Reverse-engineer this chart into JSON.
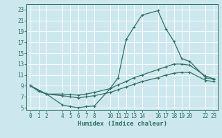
{
  "xlabel": "Humidex (Indice chaleur)",
  "bg_color": "#cce8ee",
  "grid_color": "#ffffff",
  "line_color": "#2e6e62",
  "xlim": [
    -0.5,
    23.5
  ],
  "ylim": [
    4.5,
    24
  ],
  "xticks": [
    0,
    1,
    2,
    4,
    5,
    6,
    7,
    8,
    10,
    11,
    12,
    13,
    14,
    16,
    17,
    18,
    19,
    20,
    22,
    23
  ],
  "yticks": [
    5,
    7,
    9,
    11,
    13,
    15,
    17,
    19,
    21,
    23
  ],
  "curve1_x": [
    0,
    1,
    2,
    4,
    5,
    6,
    7,
    8,
    10,
    11,
    12,
    13,
    14,
    16,
    17,
    18,
    19,
    20,
    22,
    23
  ],
  "curve1_y": [
    9,
    8,
    7.5,
    5.5,
    5.2,
    5.0,
    5.2,
    5.3,
    8.5,
    10.5,
    17.5,
    19.8,
    22.0,
    22.8,
    19.5,
    17.2,
    14.0,
    13.5,
    10.5,
    10.2
  ],
  "curve2_x": [
    0,
    2,
    4,
    5,
    6,
    7,
    8,
    10,
    11,
    12,
    13,
    14,
    16,
    17,
    18,
    19,
    20,
    22,
    23
  ],
  "curve2_y": [
    9,
    7.5,
    7.5,
    7.4,
    7.3,
    7.5,
    7.8,
    8.5,
    9.2,
    9.8,
    10.5,
    11.0,
    12.0,
    12.5,
    13.0,
    13.0,
    12.8,
    10.8,
    10.3
  ],
  "curve3_x": [
    0,
    2,
    4,
    5,
    6,
    7,
    8,
    10,
    11,
    12,
    13,
    14,
    16,
    17,
    18,
    19,
    20,
    22,
    23
  ],
  "curve3_y": [
    9,
    7.5,
    7.2,
    7.0,
    6.8,
    7.0,
    7.2,
    7.8,
    8.3,
    8.8,
    9.3,
    9.8,
    10.5,
    11.0,
    11.3,
    11.5,
    11.5,
    10.0,
    9.8
  ]
}
